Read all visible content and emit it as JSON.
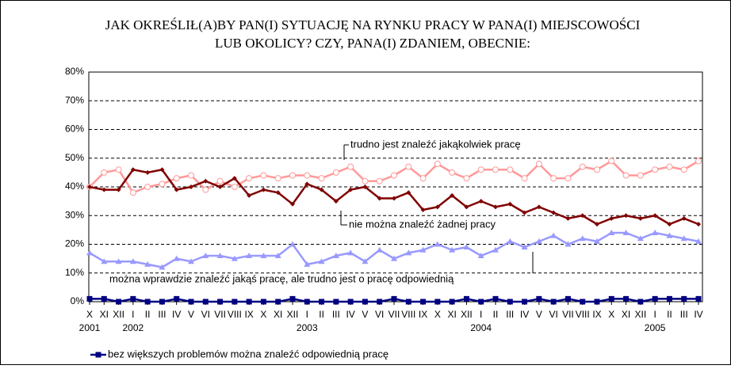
{
  "chart_data": {
    "type": "line",
    "title": "JAK OKREŚLIŁ(A)BY PAN(I) SYTUACJĘ NA RYNKU PRACY W PANA(I) MIEJSCOWOŚCI",
    "subtitle": "LUB  OKOLICY? CZY, PANA(I) ZDANIEM, OBECNIE:",
    "categories": [
      "X",
      "XI",
      "XII",
      "I",
      "II",
      "III",
      "IV",
      "V",
      "VI",
      "VII",
      "VIII",
      "IX",
      "X",
      "XI",
      "XII",
      "I",
      "II",
      "III",
      "IV",
      "V",
      "VI",
      "VII",
      "VIII",
      "IX",
      "X",
      "XI",
      "XII",
      "I",
      "II",
      "III",
      "IV",
      "V",
      "VI",
      "VII",
      "VIII",
      "IX",
      "X",
      "XI",
      "XII",
      "I",
      "II",
      "III",
      "IV"
    ],
    "years": [
      "2001",
      null,
      null,
      "2002",
      null,
      null,
      null,
      null,
      null,
      null,
      null,
      null,
      null,
      null,
      null,
      "2003",
      null,
      null,
      null,
      null,
      null,
      null,
      null,
      null,
      null,
      null,
      null,
      "2004",
      null,
      null,
      null,
      null,
      null,
      null,
      null,
      null,
      null,
      null,
      null,
      "2005",
      null,
      null,
      null
    ],
    "ylim": [
      0,
      80
    ],
    "yticks": [
      {
        "value": 0,
        "label": "0%"
      },
      {
        "value": 10,
        "label": "10%"
      },
      {
        "value": 20,
        "label": "20%"
      },
      {
        "value": 30,
        "label": "30%"
      },
      {
        "value": 40,
        "label": "40%"
      },
      {
        "value": 50,
        "label": "50%"
      },
      {
        "value": 60,
        "label": "60%"
      },
      {
        "value": 70,
        "label": "70%"
      },
      {
        "value": 80,
        "label": "80%"
      }
    ],
    "grid": true,
    "series": [
      {
        "name": "trudno jest znaleźć jakąkolwiek pracę",
        "color": "#ff9999",
        "marker": "circle",
        "legend": false,
        "values": [
          40,
          45,
          46,
          38,
          40,
          41,
          43,
          44,
          39,
          42,
          40,
          43,
          44,
          43,
          44,
          44,
          43,
          45,
          47,
          42,
          42,
          44,
          47,
          43,
          48,
          45,
          43,
          46,
          46,
          46,
          43,
          48,
          43,
          43,
          47,
          46,
          49,
          44,
          44,
          46,
          47,
          46,
          49
        ]
      },
      {
        "name": "nie można znaleźć żadnej pracy",
        "color": "#800000",
        "marker": "diamond",
        "legend": false,
        "values": [
          40,
          39,
          39,
          46,
          45,
          46,
          39,
          40,
          42,
          40,
          43,
          37,
          39,
          38,
          34,
          41,
          39,
          35,
          39,
          40,
          36,
          36,
          38,
          32,
          33,
          37,
          33,
          35,
          33,
          34,
          31,
          33,
          31,
          29,
          30,
          27,
          29,
          30,
          29,
          30,
          27,
          29,
          27
        ]
      },
      {
        "name": "można wprawdzie znaleźć jakąś pracę, ale trudno jest o pracę odpowiednią",
        "color": "#9999ff",
        "marker": "triangle",
        "legend": false,
        "values": [
          17,
          14,
          14,
          14,
          13,
          12,
          15,
          14,
          16,
          16,
          15,
          16,
          16,
          16,
          20,
          13,
          14,
          16,
          17,
          14,
          18,
          15,
          17,
          18,
          20,
          18,
          19,
          16,
          18,
          21,
          19,
          21,
          23,
          20,
          22,
          21,
          24,
          24,
          22,
          24,
          23,
          22,
          21
        ]
      },
      {
        "name": "bez większych problemów można znaleźć odpowiednią pracę",
        "color": "#000080",
        "marker": "square",
        "legend": true,
        "values": [
          1,
          1,
          0,
          1,
          0,
          0,
          1,
          0,
          0,
          0,
          0,
          0,
          0,
          0,
          1,
          0,
          0,
          0,
          0,
          0,
          0,
          1,
          0,
          0,
          0,
          0,
          1,
          0,
          1,
          0,
          0,
          1,
          0,
          1,
          0,
          0,
          1,
          1,
          0,
          1,
          1,
          1,
          1
        ]
      }
    ]
  }
}
